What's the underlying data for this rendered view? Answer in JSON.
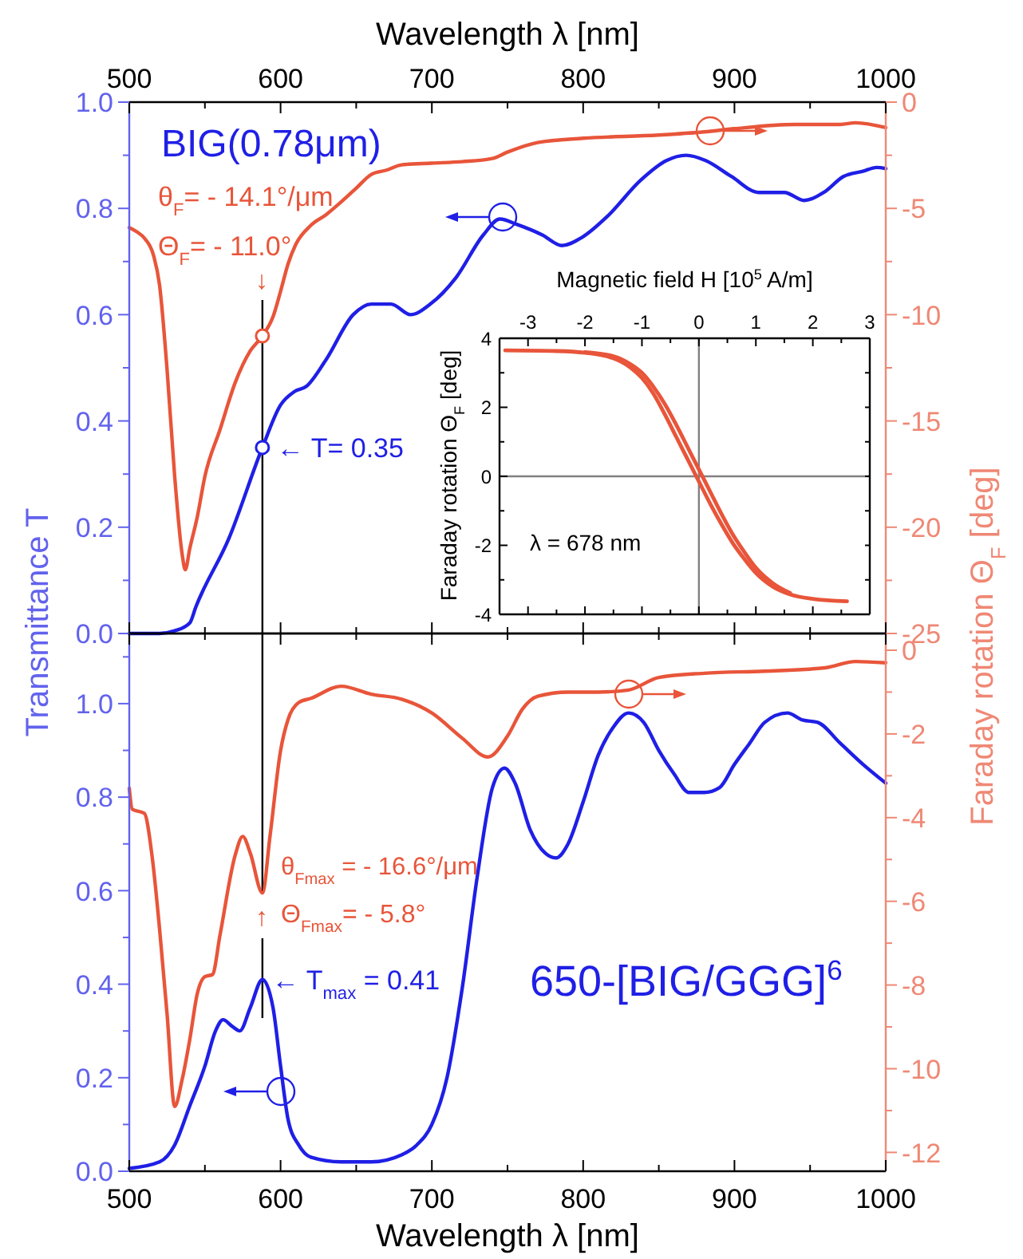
{
  "chart_data": [
    {
      "type": "line",
      "xlabel": "Wavelength λ  [nm]",
      "ylabel": "Transmittance T",
      "y2label": "Faraday rotation Θ$_{F}$ [deg]",
      "xlim": [
        500,
        1000
      ],
      "xticks": [
        500,
        {
          "value": 550,
          "label": null
        },
        600,
        {
          "value": 650,
          "label": null
        },
        700,
        {
          "value": 750,
          "label": null
        },
        800,
        {
          "value": 850,
          "label": null
        },
        900,
        {
          "value": 950,
          "label": null
        },
        1000
      ],
      "ylim": [
        0,
        1
      ],
      "yticks": [
        {
          "value": 0,
          "label": "0.0"
        },
        {
          "value": 0.1,
          "label": null
        },
        0.2,
        {
          "value": 0.3,
          "label": null
        },
        0.4,
        {
          "value": 0.5,
          "label": null
        },
        0.6,
        {
          "value": 0.7,
          "label": null
        },
        0.8,
        {
          "value": 0.9,
          "label": null
        },
        {
          "value": 1,
          "label": "1.0"
        }
      ],
      "y2lim": [
        -25,
        0
      ],
      "y2ticks": [
        -25,
        {
          "value": -22.5,
          "label": null
        },
        -20,
        {
          "value": -17.5,
          "label": null
        },
        -15,
        {
          "value": -12.5,
          "label": null
        },
        -10,
        {
          "value": -7.5,
          "label": null
        },
        -5,
        {
          "value": -2.5,
          "label": null
        },
        0
      ],
      "series": [
        {
          "color": "#1f1fe6",
          "x": [
            500,
            520,
            530,
            540,
            544,
            566,
            588,
            600,
            609,
            617,
            630,
            648,
            660,
            673,
            686,
            699,
            716,
            734,
            745,
            756,
            773,
            786,
            799,
            816,
            838,
            855,
            868,
            881,
            898,
            916,
            933,
            946,
            959,
            972,
            985,
            994,
            1000
          ],
          "values": [
            0,
            0,
            0.005,
            0.02,
            0.05,
            0.18,
            0.35,
            0.43,
            0.455,
            0.465,
            0.515,
            0.6,
            0.62,
            0.62,
            0.6,
            0.62,
            0.67,
            0.75,
            0.78,
            0.77,
            0.75,
            0.73,
            0.745,
            0.785,
            0.853,
            0.89,
            0.9,
            0.89,
            0.86,
            0.83,
            0.83,
            0.815,
            0.83,
            0.86,
            0.87,
            0.877,
            0.875
          ]
        },
        {
          "axis": "y2",
          "color": "#e8553a",
          "x": [
            500,
            505,
            510,
            516,
            520,
            525,
            530,
            535,
            537,
            540,
            545,
            550,
            560,
            570,
            580,
            588,
            595,
            600,
            605,
            610,
            620,
            630,
            640,
            650,
            660,
            670,
            680,
            700,
            720,
            740,
            750,
            770,
            800,
            850,
            880,
            900,
            940,
            970,
            980,
            1000
          ],
          "values": [
            -5.9,
            -6.1,
            -6.4,
            -7.2,
            -8.6,
            -12.6,
            -17.6,
            -21.3,
            -22,
            -21,
            -19.5,
            -17.6,
            -15.4,
            -13.2,
            -11.7,
            -11,
            -10.1,
            -8.9,
            -7.6,
            -6.7,
            -5.8,
            -5.3,
            -4.7,
            -4.05,
            -3.4,
            -3.2,
            -2.95,
            -2.87,
            -2.8,
            -2.65,
            -2.35,
            -1.9,
            -1.7,
            -1.55,
            -1.4,
            -1.25,
            -1.05,
            -1.05,
            -0.97,
            -1.2
          ]
        },
        {
          "type": "scatter",
          "marker": "circle",
          "color": "#1f1fe6",
          "x": [
            588
          ],
          "values": [
            0.35
          ]
        },
        {
          "type": "scatter",
          "marker": "circle",
          "axis": "y2",
          "color": "#e8553a",
          "x": [
            588
          ],
          "values": [
            -11
          ]
        }
      ],
      "ref_lines": [
        {
          "axis": "x",
          "value": 588,
          "color": "#000000"
        }
      ],
      "annotations": [
        "BIG(0.78μm)",
        "θ$_{F}$= - 14.1°/μm",
        "Θ$_{F}$= - 11.0°",
        "↓",
        {
          "text": "← T= 0.35",
          "x": 588,
          "y": 0.35
        }
      ]
    },
    {
      "type": "line",
      "xlabel": "Magnetic field H  [10$^{5}$ A/m]",
      "ylabel": "Faraday rotation Θ$_{F}$ [deg]",
      "xlim": [
        -3.5,
        3
      ],
      "xticks": [
        -3,
        {
          "value": -2.5,
          "label": null
        },
        -2,
        {
          "value": -1.5,
          "label": null
        },
        -1,
        {
          "value": -0.5,
          "label": null
        },
        0,
        {
          "value": 0.5,
          "label": null
        },
        1,
        {
          "value": 1.5,
          "label": null
        },
        2,
        {
          "value": 2.5,
          "label": null
        },
        3
      ],
      "ylim": [
        -4,
        4
      ],
      "yticks": [
        -4,
        {
          "value": -3,
          "label": null
        },
        -2,
        {
          "value": -1,
          "label": null
        },
        0,
        {
          "value": 1,
          "label": null
        },
        2,
        {
          "value": 3,
          "label": null
        },
        4
      ],
      "series": [
        {
          "color": "#e8553a",
          "x": [
            -3.4,
            -2.5,
            -2,
            -1.5,
            -1.2,
            -1,
            -0.8,
            -0.6,
            -0.4,
            -0.2,
            0,
            0.2,
            0.4,
            0.6,
            0.8,
            1,
            1.3,
            1.6,
            2,
            2.6
          ],
          "values": [
            3.65,
            3.63,
            3.58,
            3.42,
            3.15,
            2.85,
            2.4,
            1.8,
            1.15,
            0.5,
            -0.15,
            -0.8,
            -1.4,
            -1.95,
            -2.4,
            -2.8,
            -3.2,
            -3.42,
            -3.55,
            -3.62
          ]
        },
        {
          "color": "#e8553a",
          "x": [
            -2,
            -1.5,
            -1.2,
            -1,
            -0.8,
            -0.6,
            -0.4,
            -0.2,
            0,
            0.2,
            0.4,
            0.6,
            0.8,
            1,
            1.3,
            1.6
          ],
          "values": [
            3.6,
            3.48,
            3.25,
            3.0,
            2.6,
            2.1,
            1.5,
            0.85,
            0.2,
            -0.45,
            -1.1,
            -1.7,
            -2.2,
            -2.65,
            -3.1,
            -3.38
          ]
        }
      ],
      "ref_lines": [
        {
          "axis": "x",
          "value": 0,
          "color": "#808080"
        },
        {
          "axis": "y",
          "value": 0,
          "color": "#808080"
        }
      ],
      "annotations": [
        "λ = 678 nm"
      ]
    },
    {
      "type": "line",
      "xlabel": "Wavelength λ  [nm]",
      "xlim": [
        500,
        1000
      ],
      "xticks": [
        500,
        {
          "value": 550,
          "label": null
        },
        600,
        {
          "value": 650,
          "label": null
        },
        700,
        {
          "value": 750,
          "label": null
        },
        800,
        {
          "value": 850,
          "label": null
        },
        900,
        {
          "value": 950,
          "label": null
        },
        1000
      ],
      "ylim": [
        0,
        1.15
      ],
      "yticks": [
        {
          "value": 0,
          "label": "0.0"
        },
        {
          "value": 0.1,
          "label": null
        },
        0.2,
        {
          "value": 0.3,
          "label": null
        },
        0.4,
        {
          "value": 0.5,
          "label": null
        },
        0.6,
        {
          "value": 0.7,
          "label": null
        },
        0.8,
        {
          "value": 0.9,
          "label": null
        },
        {
          "value": 1,
          "label": "1.0"
        },
        {
          "value": 1.1,
          "label": null
        }
      ],
      "y2lim": [
        -12.45,
        0.4
      ],
      "y2ticks": [
        -12,
        {
          "value": -11,
          "label": null
        },
        -10,
        {
          "value": -9,
          "label": null
        },
        -8,
        {
          "value": -7,
          "label": null
        },
        -6,
        {
          "value": -5,
          "label": null
        },
        -4,
        {
          "value": -3,
          "label": null
        },
        -2,
        {
          "value": -1,
          "label": null
        },
        0
      ],
      "series": [
        {
          "color": "#1f1fe6",
          "x": [
            500,
            520,
            530,
            540,
            550,
            557,
            562,
            568,
            573,
            580,
            588,
            595,
            600,
            605,
            612,
            620,
            640,
            660,
            680,
            690,
            700,
            710,
            720,
            730,
            740,
            748,
            755,
            765,
            775,
            782,
            790,
            800,
            810,
            820,
            830,
            840,
            850,
            860,
            870,
            880,
            890,
            900,
            910,
            920,
            935,
            945,
            955,
            970,
            985,
            1000
          ],
          "values": [
            0.006,
            0.02,
            0.056,
            0.14,
            0.225,
            0.3,
            0.324,
            0.31,
            0.3,
            0.35,
            0.41,
            0.35,
            0.225,
            0.11,
            0.056,
            0.03,
            0.02,
            0.02,
            0.035,
            0.056,
            0.1,
            0.2,
            0.39,
            0.63,
            0.82,
            0.862,
            0.83,
            0.73,
            0.68,
            0.67,
            0.7,
            0.79,
            0.89,
            0.95,
            0.98,
            0.96,
            0.9,
            0.85,
            0.81,
            0.81,
            0.82,
            0.87,
            0.915,
            0.96,
            0.98,
            0.965,
            0.96,
            0.915,
            0.87,
            0.83
          ]
        },
        {
          "axis": "y2",
          "color": "#e8553a",
          "x": [
            500,
            502,
            510,
            515,
            520,
            525,
            530,
            535,
            540,
            545,
            550,
            555,
            560,
            570,
            575,
            580,
            588,
            593,
            600,
            605,
            612,
            620,
            640,
            660,
            680,
            700,
            720,
            737,
            750,
            760,
            770,
            790,
            810,
            830,
            850,
            880,
            920,
            960,
            980,
            1000
          ],
          "values": [
            -3.3,
            -3.8,
            -3.9,
            -4.9,
            -6.65,
            -8.7,
            -10.9,
            -10.25,
            -9.3,
            -8.2,
            -7.8,
            -7.75,
            -6.8,
            -4.9,
            -4.45,
            -4.85,
            -5.8,
            -4.45,
            -2.4,
            -1.65,
            -1.25,
            -1.15,
            -0.86,
            -1.05,
            -1.17,
            -1.5,
            -2.1,
            -2.55,
            -2.05,
            -1.4,
            -1.1,
            -1,
            -1,
            -0.95,
            -0.65,
            -0.55,
            -0.5,
            -0.42,
            -0.27,
            -0.3
          ]
        }
      ],
      "ref_lines": [
        {
          "axis": "x",
          "value": 588,
          "color": "#000000"
        }
      ],
      "annotations": [
        "θ$_{Fmax}$ = - 16.6°/μm",
        "Θ$_{Fmax}$= - 5.8°",
        "↑",
        {
          "text": "← T$_{max}$ =  0.41",
          "x": 588,
          "y": 0.41
        },
        "650-[BIG/GGG]$^{6}$"
      ]
    }
  ]
}
